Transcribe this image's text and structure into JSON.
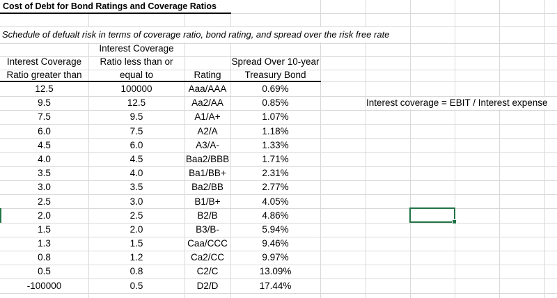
{
  "sheet": {
    "title": "Cost of Debt for Bond Ratings and Coverage Ratios",
    "subtitle": "Schedule of defualt risk in terms of coverage ratio, bond rating, and spread over the risk free rate",
    "note": "Interest coverage = EBIT / Interest expense",
    "colors": {
      "selection": "#217346",
      "gridline": "#d9d9d9",
      "text": "#000000",
      "rule": "#000000"
    }
  },
  "table": {
    "headers": {
      "col_a": [
        "Interest Coverage",
        "Ratio greater than"
      ],
      "col_b": [
        "Interest Coverage",
        "Ratio less than or",
        "equal to"
      ],
      "col_c": [
        "Rating"
      ],
      "col_d": [
        "Spread Over 10-year",
        "Treasury Bond"
      ]
    },
    "rows": [
      {
        "gt": "12.5",
        "le": "100000",
        "rating": "Aaa/AAA",
        "spread": "0.69%"
      },
      {
        "gt": "9.5",
        "le": "12.5",
        "rating": "Aa2/AA",
        "spread": "0.85%"
      },
      {
        "gt": "7.5",
        "le": "9.5",
        "rating": "A1/A+",
        "spread": "1.07%"
      },
      {
        "gt": "6.0",
        "le": "7.5",
        "rating": "A2/A",
        "spread": "1.18%"
      },
      {
        "gt": "4.5",
        "le": "6.0",
        "rating": "A3/A-",
        "spread": "1.33%"
      },
      {
        "gt": "4.0",
        "le": "4.5",
        "rating": "Baa2/BBB",
        "spread": "1.71%"
      },
      {
        "gt": "3.5",
        "le": "4.0",
        "rating": "Ba1/BB+",
        "spread": "2.31%"
      },
      {
        "gt": "3.0",
        "le": "3.5",
        "rating": "Ba2/BB",
        "spread": "2.77%"
      },
      {
        "gt": "2.5",
        "le": "3.0",
        "rating": "B1/B+",
        "spread": "4.05%"
      },
      {
        "gt": "2.0",
        "le": "2.5",
        "rating": "B2/B",
        "spread": "4.86%"
      },
      {
        "gt": "1.5",
        "le": "2.0",
        "rating": "B3/B-",
        "spread": "5.94%"
      },
      {
        "gt": "1.3",
        "le": "1.5",
        "rating": "Caa/CCC",
        "spread": "9.46%"
      },
      {
        "gt": "0.8",
        "le": "1.2",
        "rating": "Ca2/CC",
        "spread": "9.97%"
      },
      {
        "gt": "0.5",
        "le": "0.8",
        "rating": "C2/C",
        "spread": "13.09%"
      },
      {
        "gt": "-100000",
        "le": "0.5",
        "rating": "D2/D",
        "spread": "17.44%"
      }
    ]
  }
}
